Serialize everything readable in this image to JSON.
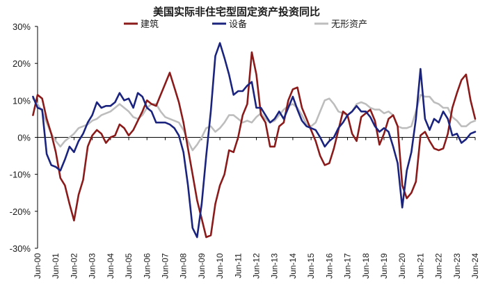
{
  "chart_data": {
    "type": "line",
    "title": "美国实际非住宅型固定资产投资同比",
    "xlabel": "",
    "ylabel": "",
    "ylim": [
      -30,
      30
    ],
    "yticks": [
      30,
      20,
      10,
      0,
      -10,
      -20,
      -30
    ],
    "ytick_labels": [
      "30%",
      "20%",
      "10%",
      "0%",
      "-10%",
      "-20%",
      "-30%"
    ],
    "x_tick_labels": [
      "Jun-00",
      "Jun-01",
      "Jun-02",
      "Jun-03",
      "Jun-04",
      "Jun-05",
      "Jun-06",
      "Jun-07",
      "Jun-08",
      "Jun-09",
      "Jun-10",
      "Jun-11",
      "Jun-12",
      "Jun-13",
      "Jun-14",
      "Jun-15",
      "Jun-16",
      "Jun-17",
      "Jun-18",
      "Jun-19",
      "Jun-20",
      "Jun-21",
      "Jun-22",
      "Jun-23",
      "Jun-24"
    ],
    "x_start": 2000.5,
    "x_end": 2024.5,
    "grid": false,
    "legend_position": "top",
    "series": [
      {
        "name": "建筑",
        "color": "#8B1A1A",
        "points": [
          [
            2000.25,
            6
          ],
          [
            2000.5,
            11.5
          ],
          [
            2000.75,
            10.5
          ],
          [
            2001.0,
            5
          ],
          [
            2001.25,
            1
          ],
          [
            2001.5,
            -4
          ],
          [
            2001.75,
            -11
          ],
          [
            2002.0,
            -13
          ],
          [
            2002.25,
            -18
          ],
          [
            2002.5,
            -22.5
          ],
          [
            2002.75,
            -15.5
          ],
          [
            2003.0,
            -11.5
          ],
          [
            2003.25,
            -2.5
          ],
          [
            2003.5,
            0.5
          ],
          [
            2003.75,
            2
          ],
          [
            2004.0,
            1
          ],
          [
            2004.25,
            -1.5
          ],
          [
            2004.5,
            0
          ],
          [
            2004.75,
            0.5
          ],
          [
            2005.0,
            3.5
          ],
          [
            2005.25,
            2.5
          ],
          [
            2005.5,
            0.5
          ],
          [
            2005.75,
            2
          ],
          [
            2006.0,
            4.5
          ],
          [
            2006.25,
            7
          ],
          [
            2006.5,
            10
          ],
          [
            2006.75,
            9
          ],
          [
            2007.0,
            8.5
          ],
          [
            2007.25,
            11.5
          ],
          [
            2007.5,
            14.5
          ],
          [
            2007.75,
            17.5
          ],
          [
            2008.0,
            13.5
          ],
          [
            2008.25,
            9.5
          ],
          [
            2008.5,
            4
          ],
          [
            2008.75,
            -3
          ],
          [
            2009.0,
            -10
          ],
          [
            2009.25,
            -17
          ],
          [
            2009.5,
            -22
          ],
          [
            2009.75,
            -27
          ],
          [
            2010.0,
            -26.5
          ],
          [
            2010.25,
            -18
          ],
          [
            2010.5,
            -13
          ],
          [
            2010.75,
            -10
          ],
          [
            2011.0,
            -3.5
          ],
          [
            2011.25,
            -4
          ],
          [
            2011.5,
            0
          ],
          [
            2011.75,
            6
          ],
          [
            2012.0,
            9
          ],
          [
            2012.25,
            23
          ],
          [
            2012.5,
            17
          ],
          [
            2012.75,
            6
          ],
          [
            2013.0,
            4
          ],
          [
            2013.25,
            -2.5
          ],
          [
            2013.5,
            -2.5
          ],
          [
            2013.75,
            3
          ],
          [
            2014.0,
            4
          ],
          [
            2014.25,
            10
          ],
          [
            2014.5,
            13
          ],
          [
            2014.75,
            13.5
          ],
          [
            2015.0,
            8
          ],
          [
            2015.25,
            5
          ],
          [
            2015.5,
            2
          ],
          [
            2015.75,
            -1
          ],
          [
            2016.0,
            -5
          ],
          [
            2016.25,
            -7.5
          ],
          [
            2016.5,
            -7
          ],
          [
            2016.75,
            -3
          ],
          [
            2017.0,
            2
          ],
          [
            2017.25,
            7
          ],
          [
            2017.5,
            6
          ],
          [
            2017.75,
            1
          ],
          [
            2018.0,
            -1
          ],
          [
            2018.25,
            5.5
          ],
          [
            2018.5,
            6.5
          ],
          [
            2018.75,
            7.5
          ],
          [
            2019.0,
            4.5
          ],
          [
            2019.25,
            -2
          ],
          [
            2019.5,
            1
          ],
          [
            2019.75,
            5
          ],
          [
            2020.0,
            6
          ],
          [
            2020.25,
            3
          ],
          [
            2020.5,
            -13
          ],
          [
            2020.75,
            -16.5
          ],
          [
            2021.0,
            -15
          ],
          [
            2021.25,
            -12
          ],
          [
            2021.5,
            0.5
          ],
          [
            2021.75,
            1.5
          ],
          [
            2022.0,
            -1
          ],
          [
            2022.25,
            -3
          ],
          [
            2022.5,
            -3.5
          ],
          [
            2022.75,
            -3
          ],
          [
            2023.0,
            1
          ],
          [
            2023.25,
            8
          ],
          [
            2023.5,
            12
          ],
          [
            2023.75,
            15.5
          ],
          [
            2024.0,
            17
          ],
          [
            2024.25,
            10
          ],
          [
            2024.5,
            5
          ]
        ]
      },
      {
        "name": "设备",
        "color": "#1A237E",
        "points": [
          [
            2000.25,
            11
          ],
          [
            2000.5,
            8
          ],
          [
            2000.75,
            7.5
          ],
          [
            2001.0,
            -4.5
          ],
          [
            2001.25,
            -7.5
          ],
          [
            2001.5,
            -8
          ],
          [
            2001.75,
            -9
          ],
          [
            2002.0,
            -6
          ],
          [
            2002.25,
            -2.5
          ],
          [
            2002.5,
            -4
          ],
          [
            2002.75,
            -1
          ],
          [
            2003.0,
            1
          ],
          [
            2003.25,
            4
          ],
          [
            2003.5,
            6
          ],
          [
            2003.75,
            9.5
          ],
          [
            2004.0,
            8
          ],
          [
            2004.25,
            8.5
          ],
          [
            2004.5,
            8.5
          ],
          [
            2004.75,
            9.5
          ],
          [
            2005.0,
            12
          ],
          [
            2005.25,
            10
          ],
          [
            2005.5,
            10.5
          ],
          [
            2005.75,
            8
          ],
          [
            2006.0,
            12
          ],
          [
            2006.25,
            11
          ],
          [
            2006.5,
            8
          ],
          [
            2006.75,
            7
          ],
          [
            2007.0,
            4
          ],
          [
            2007.25,
            4
          ],
          [
            2007.5,
            4
          ],
          [
            2007.75,
            3.5
          ],
          [
            2008.0,
            2.5
          ],
          [
            2008.25,
            0.5
          ],
          [
            2008.5,
            -4
          ],
          [
            2008.75,
            -13
          ],
          [
            2009.0,
            -24.5
          ],
          [
            2009.25,
            -27
          ],
          [
            2009.5,
            -18
          ],
          [
            2009.75,
            -5
          ],
          [
            2010.0,
            7
          ],
          [
            2010.25,
            22
          ],
          [
            2010.5,
            25.5
          ],
          [
            2010.75,
            21.5
          ],
          [
            2011.0,
            17
          ],
          [
            2011.25,
            11.5
          ],
          [
            2011.5,
            12.5
          ],
          [
            2011.75,
            12.5
          ],
          [
            2012.0,
            14
          ],
          [
            2012.25,
            15
          ],
          [
            2012.5,
            8
          ],
          [
            2012.75,
            8
          ],
          [
            2013.0,
            6
          ],
          [
            2013.25,
            4
          ],
          [
            2013.5,
            5
          ],
          [
            2013.75,
            7
          ],
          [
            2014.0,
            5
          ],
          [
            2014.25,
            8
          ],
          [
            2014.5,
            11
          ],
          [
            2014.75,
            7.5
          ],
          [
            2015.0,
            4.5
          ],
          [
            2015.25,
            3
          ],
          [
            2015.5,
            2.5
          ],
          [
            2015.75,
            2
          ],
          [
            2016.0,
            0
          ],
          [
            2016.25,
            -2.5
          ],
          [
            2016.5,
            -1
          ],
          [
            2016.75,
            0
          ],
          [
            2017.0,
            2.5
          ],
          [
            2017.25,
            4
          ],
          [
            2017.5,
            6
          ],
          [
            2017.75,
            7
          ],
          [
            2018.0,
            8.5
          ],
          [
            2018.25,
            7
          ],
          [
            2018.5,
            7
          ],
          [
            2018.75,
            5.5
          ],
          [
            2019.0,
            3
          ],
          [
            2019.25,
            1.5
          ],
          [
            2019.5,
            2.5
          ],
          [
            2019.75,
            1.5
          ],
          [
            2020.0,
            -2.5
          ],
          [
            2020.25,
            -7
          ],
          [
            2020.5,
            -19
          ],
          [
            2020.75,
            -9
          ],
          [
            2021.0,
            -4
          ],
          [
            2021.25,
            5
          ],
          [
            2021.5,
            18.5
          ],
          [
            2021.75,
            5
          ],
          [
            2022.0,
            2
          ],
          [
            2022.25,
            5
          ],
          [
            2022.5,
            4
          ],
          [
            2022.75,
            7
          ],
          [
            2023.0,
            5
          ],
          [
            2023.25,
            0.5
          ],
          [
            2023.5,
            1
          ],
          [
            2023.75,
            -1.5
          ],
          [
            2024.0,
            -0.5
          ],
          [
            2024.25,
            1
          ],
          [
            2024.5,
            1.5
          ]
        ]
      },
      {
        "name": "无形资产",
        "color": "#BDBDBD",
        "points": [
          [
            2000.25,
            10.5
          ],
          [
            2000.5,
            9
          ],
          [
            2000.75,
            7
          ],
          [
            2001.0,
            4
          ],
          [
            2001.25,
            1
          ],
          [
            2001.5,
            -1
          ],
          [
            2001.75,
            -2.5
          ],
          [
            2002.0,
            -1
          ],
          [
            2002.25,
            0
          ],
          [
            2002.5,
            1
          ],
          [
            2002.75,
            2.5
          ],
          [
            2003.0,
            3
          ],
          [
            2003.25,
            3.5
          ],
          [
            2003.5,
            4.5
          ],
          [
            2003.75,
            5
          ],
          [
            2004.0,
            6
          ],
          [
            2004.25,
            6.5
          ],
          [
            2004.5,
            7
          ],
          [
            2004.75,
            8
          ],
          [
            2005.0,
            9
          ],
          [
            2005.25,
            8
          ],
          [
            2005.5,
            7
          ],
          [
            2005.75,
            5.5
          ],
          [
            2006.0,
            5
          ],
          [
            2006.25,
            6
          ],
          [
            2006.5,
            8
          ],
          [
            2006.75,
            9
          ],
          [
            2007.0,
            9
          ],
          [
            2007.25,
            7
          ],
          [
            2007.5,
            5.5
          ],
          [
            2007.75,
            5
          ],
          [
            2008.0,
            4.5
          ],
          [
            2008.25,
            4
          ],
          [
            2008.5,
            2
          ],
          [
            2008.75,
            -1
          ],
          [
            2009.0,
            -3.5
          ],
          [
            2009.25,
            -2
          ],
          [
            2009.5,
            0
          ],
          [
            2009.75,
            2.5
          ],
          [
            2010.0,
            3
          ],
          [
            2010.25,
            1.5
          ],
          [
            2010.5,
            2.5
          ],
          [
            2010.75,
            4
          ],
          [
            2011.0,
            6
          ],
          [
            2011.25,
            6
          ],
          [
            2011.5,
            5
          ],
          [
            2011.75,
            4
          ],
          [
            2012.0,
            4.5
          ],
          [
            2012.25,
            4
          ],
          [
            2012.5,
            5.5
          ],
          [
            2012.75,
            6.5
          ],
          [
            2013.0,
            5
          ],
          [
            2013.25,
            4
          ],
          [
            2013.5,
            4.5
          ],
          [
            2013.75,
            6
          ],
          [
            2014.0,
            7.5
          ],
          [
            2014.25,
            8.5
          ],
          [
            2014.5,
            9
          ],
          [
            2014.75,
            8
          ],
          [
            2015.0,
            6
          ],
          [
            2015.25,
            3.5
          ],
          [
            2015.5,
            3
          ],
          [
            2015.75,
            4
          ],
          [
            2016.0,
            7
          ],
          [
            2016.25,
            10
          ],
          [
            2016.5,
            10.5
          ],
          [
            2016.75,
            9
          ],
          [
            2017.0,
            7
          ],
          [
            2017.25,
            6.5
          ],
          [
            2017.5,
            6
          ],
          [
            2017.75,
            7
          ],
          [
            2018.0,
            9
          ],
          [
            2018.25,
            9.5
          ],
          [
            2018.5,
            9
          ],
          [
            2018.75,
            8
          ],
          [
            2019.0,
            7.5
          ],
          [
            2019.25,
            7.5
          ],
          [
            2019.5,
            6.5
          ],
          [
            2019.75,
            7
          ],
          [
            2020.0,
            6
          ],
          [
            2020.25,
            3
          ],
          [
            2020.5,
            2.5
          ],
          [
            2020.75,
            2.5
          ],
          [
            2021.0,
            3
          ],
          [
            2021.25,
            7
          ],
          [
            2021.5,
            11.5
          ],
          [
            2021.75,
            11
          ],
          [
            2022.0,
            11
          ],
          [
            2022.25,
            9.5
          ],
          [
            2022.5,
            9
          ],
          [
            2022.75,
            8
          ],
          [
            2023.0,
            8
          ],
          [
            2023.25,
            5.5
          ],
          [
            2023.5,
            4.5
          ],
          [
            2023.75,
            3
          ],
          [
            2024.0,
            3
          ],
          [
            2024.25,
            4
          ],
          [
            2024.5,
            4.5
          ]
        ]
      }
    ]
  }
}
